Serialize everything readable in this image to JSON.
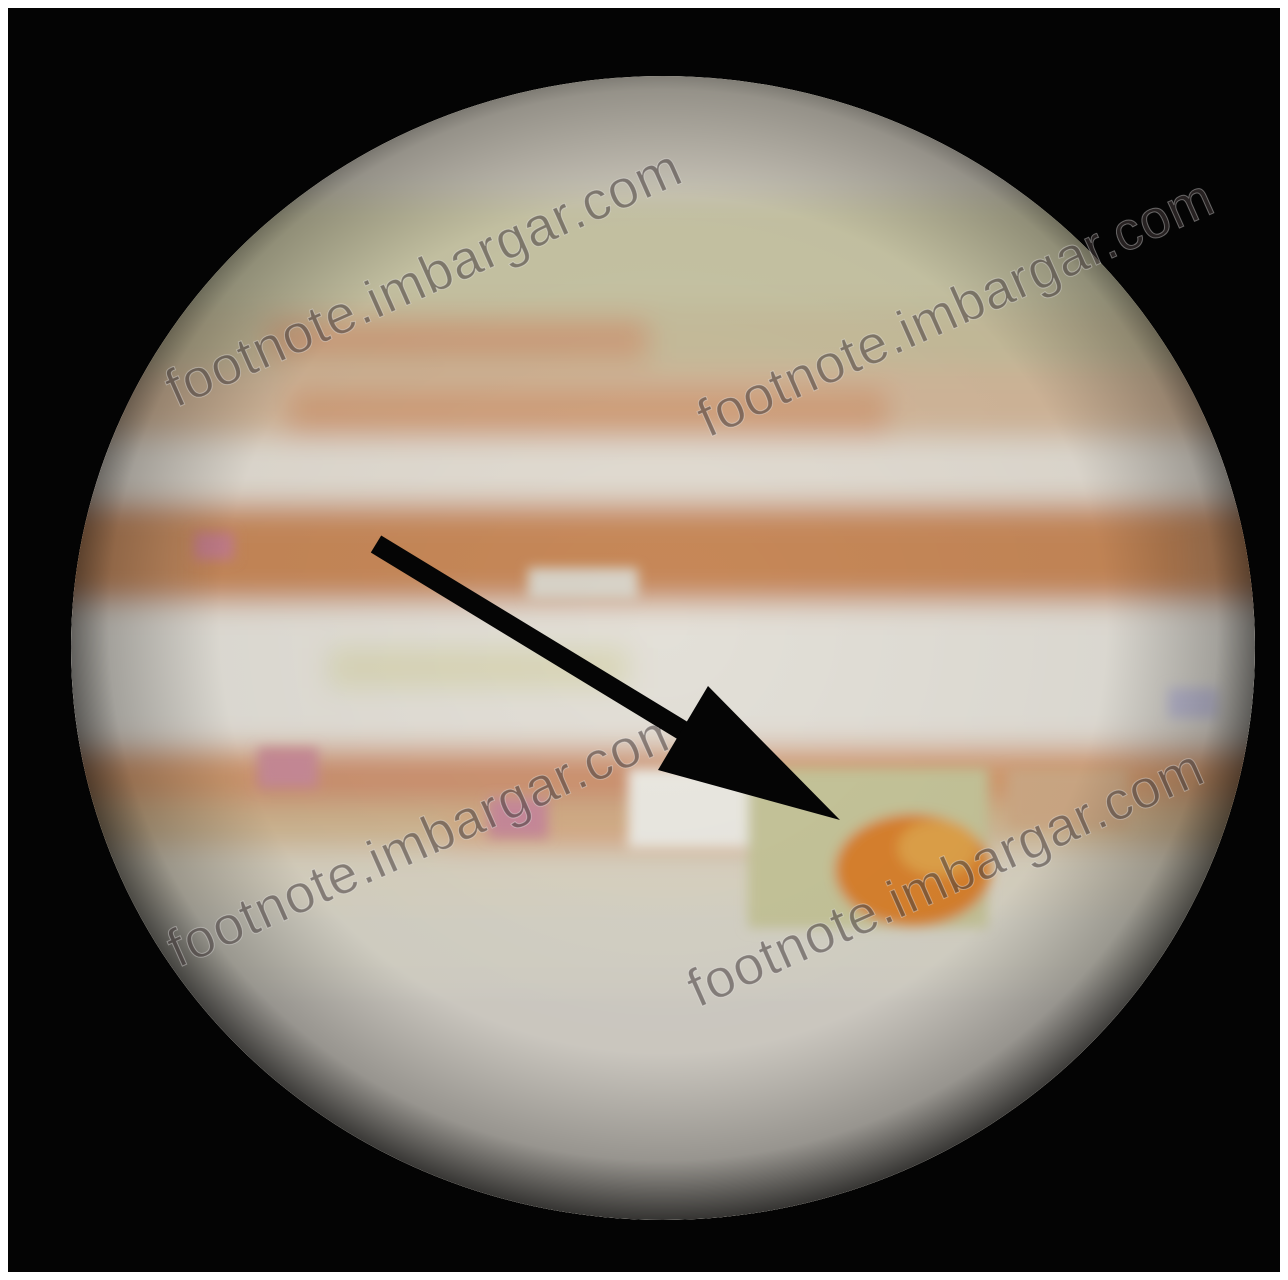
{
  "image": {
    "subject": "planet-jupiter",
    "background_color": "#040404",
    "frame_color": "#ffffff"
  },
  "watermarks": [
    {
      "text": "footnote.imbargar.com"
    },
    {
      "text": "footnote.imbargar.com"
    },
    {
      "text": "footnote.imbargar.com"
    },
    {
      "text": "footnote.imbargar.com"
    }
  ],
  "palette": {
    "cream": "#e4ded2",
    "light_band": "#d8d2c4",
    "tan_band": "#c89a72",
    "orange_band": "#d28f5e",
    "olive_band": "#c6c29a",
    "spot_orange": "#d9822e",
    "pink_patch": "#c88a96",
    "arrow": "#050505"
  }
}
